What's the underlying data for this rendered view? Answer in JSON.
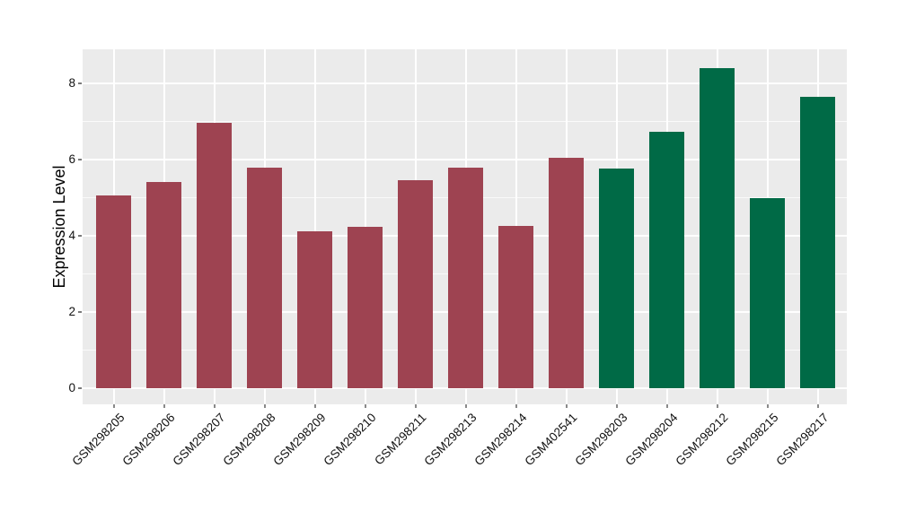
{
  "chart_data": {
    "type": "bar",
    "title": "",
    "xlabel": "",
    "ylabel": "Expression Level",
    "categories": [
      "GSM298205",
      "GSM298206",
      "GSM298207",
      "GSM298208",
      "GSM298209",
      "GSM298210",
      "GSM298211",
      "GSM298213",
      "GSM298214",
      "GSM402541",
      "GSM298203",
      "GSM298204",
      "GSM298212",
      "GSM298215",
      "GSM298217"
    ],
    "values": [
      5.05,
      5.42,
      6.97,
      5.78,
      4.12,
      4.23,
      5.45,
      5.78,
      4.27,
      6.05,
      5.76,
      6.73,
      8.4,
      5.0,
      7.64
    ],
    "bar_colors": [
      "#9E4351",
      "#9E4351",
      "#9E4351",
      "#9E4351",
      "#9E4351",
      "#9E4351",
      "#9E4351",
      "#9E4351",
      "#9E4351",
      "#9E4351",
      "#006A46",
      "#006A46",
      "#006A46",
      "#006A46",
      "#006A46"
    ],
    "group_colors": {
      "group1": "#9E4351",
      "group2": "#006A46"
    },
    "yticks": [
      0,
      2,
      4,
      6,
      8
    ],
    "minor_gridlines": [
      1,
      3,
      5,
      7
    ],
    "ylim": [
      0,
      8.9
    ],
    "grid": "on",
    "legend": "none",
    "panel_bg": "#EBEBEB",
    "gridline_color": "#FFFFFF"
  }
}
